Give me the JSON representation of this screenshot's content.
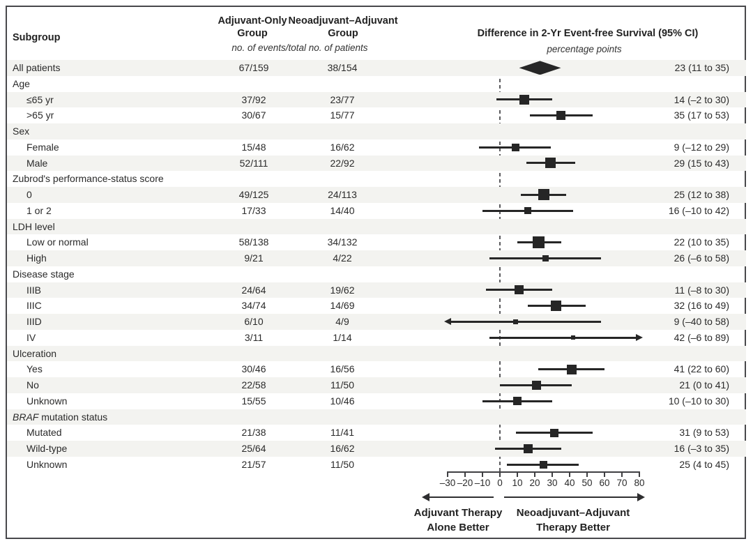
{
  "header": {
    "subgroup": "Subgroup",
    "col1_line1": "Adjuvant-Only",
    "col1_line2": "Group",
    "col2_line1": "Neoadjuvant–Adjuvant",
    "col2_line2": "Group",
    "events_note": "no. of events/total no. of patients",
    "diff_title": "Difference in 2-Yr Event-free Survival (95% CI)",
    "diff_unit": "percentage points"
  },
  "chart_data": {
    "type": "forest",
    "xlim": [
      -30,
      80
    ],
    "ticks": [
      -30,
      -20,
      -10,
      0,
      10,
      20,
      30,
      40,
      50,
      60,
      70,
      80
    ],
    "tick_labels": [
      "–30",
      "–20",
      "–10",
      "0",
      "10",
      "20",
      "30",
      "40",
      "50",
      "60",
      "70",
      "80"
    ],
    "zero_reference": 0,
    "left_arrow_label": [
      "Adjuvant Therapy",
      "Alone Better"
    ],
    "right_arrow_label": [
      "Neoadjuvant–Adjuvant",
      "Therapy Better"
    ],
    "rows": [
      {
        "type": "data",
        "label": "All patients",
        "indent": 0,
        "col1": "67/159",
        "col2": "38/154",
        "est": 23,
        "lo": 11,
        "hi": 35,
        "text": "23 (11 to 35)",
        "marker": "diamond"
      },
      {
        "type": "section",
        "label": "Age"
      },
      {
        "type": "data",
        "label": "≤65 yr",
        "indent": 1,
        "col1": "37/92",
        "col2": "23/77",
        "est": 14,
        "lo": -2,
        "hi": 30,
        "text": "14 (–2 to 30)",
        "marker": "square",
        "weight": 14
      },
      {
        "type": "data",
        "label": ">65 yr",
        "indent": 1,
        "col1": "30/67",
        "col2": "15/77",
        "est": 35,
        "lo": 17,
        "hi": 53,
        "text": "35 (17 to 53)",
        "marker": "square",
        "weight": 13
      },
      {
        "type": "section",
        "label": "Sex"
      },
      {
        "type": "data",
        "label": "Female",
        "indent": 1,
        "col1": "15/48",
        "col2": "16/62",
        "est": 9,
        "lo": -12,
        "hi": 29,
        "text": "9 (–12 to 29)",
        "marker": "square",
        "weight": 11
      },
      {
        "type": "data",
        "label": "Male",
        "indent": 1,
        "col1": "52/111",
        "col2": "22/92",
        "est": 29,
        "lo": 15,
        "hi": 43,
        "text": "29 (15 to 43)",
        "marker": "square",
        "weight": 15
      },
      {
        "type": "section",
        "label": "Zubrod's performance-status score"
      },
      {
        "type": "data",
        "label": "0",
        "indent": 1,
        "col1": "49/125",
        "col2": "24/113",
        "est": 25,
        "lo": 12,
        "hi": 38,
        "text": "25 (12 to 38)",
        "marker": "square",
        "weight": 16
      },
      {
        "type": "data",
        "label": "1 or 2",
        "indent": 1,
        "col1": "17/33",
        "col2": "14/40",
        "est": 16,
        "lo": -10,
        "hi": 42,
        "text": "16 (–10 to 42)",
        "marker": "square",
        "weight": 10
      },
      {
        "type": "section",
        "label": "LDH level"
      },
      {
        "type": "data",
        "label": "Low or normal",
        "indent": 1,
        "col1": "58/138",
        "col2": "34/132",
        "est": 22,
        "lo": 10,
        "hi": 35,
        "text": "22 (10 to 35)",
        "marker": "square",
        "weight": 17
      },
      {
        "type": "data",
        "label": "High",
        "indent": 1,
        "col1": "9/21",
        "col2": "4/22",
        "est": 26,
        "lo": -6,
        "hi": 58,
        "text": "26 (–6 to 58)",
        "marker": "square",
        "weight": 9
      },
      {
        "type": "section",
        "label": "Disease stage"
      },
      {
        "type": "data",
        "label": "IIIB",
        "indent": 1,
        "col1": "24/64",
        "col2": "19/62",
        "est": 11,
        "lo": -8,
        "hi": 30,
        "text": "11 (–8 to 30)",
        "marker": "square",
        "weight": 13
      },
      {
        "type": "data",
        "label": "IIIC",
        "indent": 1,
        "col1": "34/74",
        "col2": "14/69",
        "est": 32,
        "lo": 16,
        "hi": 49,
        "text": "32 (16 to 49)",
        "marker": "square",
        "weight": 15
      },
      {
        "type": "data",
        "label": "IIID",
        "indent": 1,
        "col1": "6/10",
        "col2": "4/9",
        "est": 9,
        "lo": -40,
        "hi": 58,
        "text": "9 (–40 to 58)",
        "marker": "square",
        "weight": 7,
        "clip_lo": true
      },
      {
        "type": "data",
        "label": "IV",
        "indent": 1,
        "col1": "3/11",
        "col2": "1/14",
        "est": 42,
        "lo": -6,
        "hi": 89,
        "text": "42 (–6 to 89)",
        "marker": "square",
        "weight": 6,
        "clip_hi": true
      },
      {
        "type": "section",
        "label": "Ulceration"
      },
      {
        "type": "data",
        "label": "Yes",
        "indent": 1,
        "col1": "30/46",
        "col2": "16/56",
        "est": 41,
        "lo": 22,
        "hi": 60,
        "text": "41 (22 to 60)",
        "marker": "square",
        "weight": 14
      },
      {
        "type": "data",
        "label": "No",
        "indent": 1,
        "col1": "22/58",
        "col2": "11/50",
        "est": 21,
        "lo": 0,
        "hi": 41,
        "text": "21 (0 to 41)",
        "marker": "square",
        "weight": 13
      },
      {
        "type": "data",
        "label": "Unknown",
        "indent": 1,
        "col1": "15/55",
        "col2": "10/46",
        "est": 10,
        "lo": -10,
        "hi": 30,
        "text": "10 (–10 to 30)",
        "marker": "square",
        "weight": 12
      },
      {
        "type": "section",
        "label_italic": "BRAF",
        "label": " mutation status"
      },
      {
        "type": "data",
        "label": "Mutated",
        "indent": 1,
        "col1": "21/38",
        "col2": "11/41",
        "est": 31,
        "lo": 9,
        "hi": 53,
        "text": "31 (9 to 53)",
        "marker": "square",
        "weight": 12
      },
      {
        "type": "data",
        "label": "Wild-type",
        "indent": 1,
        "col1": "25/64",
        "col2": "16/62",
        "est": 16,
        "lo": -3,
        "hi": 35,
        "text": "16 (–3 to 35)",
        "marker": "square",
        "weight": 13
      },
      {
        "type": "data",
        "label": "Unknown",
        "indent": 1,
        "col1": "21/57",
        "col2": "11/50",
        "est": 25,
        "lo": 4,
        "hi": 45,
        "text": "25 (4 to 45)",
        "marker": "square",
        "weight": 11
      }
    ]
  },
  "colors": {
    "stripe": "#f3f3f0",
    "marker": "#262626",
    "text": "#2a2a2a",
    "frame": "#48484b"
  }
}
